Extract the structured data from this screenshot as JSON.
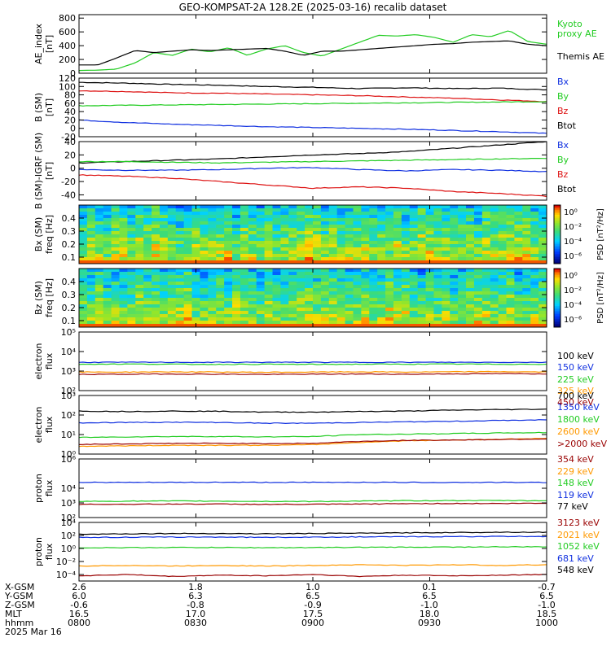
{
  "title": "GEO-KOMPSAT-2A 128.2E (2025-03-16) recalib dataset",
  "chart_data": [
    {
      "id": "ae",
      "type": "line",
      "ylabel": [
        "AE_index",
        "[nT]"
      ],
      "ylim": [
        0,
        850
      ],
      "yticks": [
        "800",
        "600",
        "400",
        "200",
        "0"
      ],
      "tickvals": [
        800,
        600,
        400,
        200,
        0
      ],
      "legend": [
        {
          "text": "Kyoto",
          "color": "#22cc22"
        },
        {
          "text": "proxy AE",
          "color": "#22cc22"
        },
        {
          "text": "Themis AE",
          "color": "#000000"
        }
      ],
      "series": [
        {
          "name": "Kyoto proxy AE",
          "color": "#22cc22",
          "values": [
            40,
            45,
            60,
            150,
            300,
            260,
            350,
            310,
            370,
            260,
            350,
            400,
            300,
            250,
            350,
            450,
            550,
            540,
            560,
            520,
            450,
            560,
            530,
            620,
            460,
            420
          ]
        },
        {
          "name": "Themis AE",
          "color": "#000000",
          "values": [
            120,
            120,
            220,
            330,
            300,
            320,
            340,
            330,
            340,
            350,
            360,
            320,
            260,
            320,
            320,
            340,
            360,
            380,
            400,
            420,
            430,
            450,
            460,
            470,
            420,
            400
          ]
        }
      ]
    },
    {
      "id": "bsm",
      "type": "line",
      "ylabel": [
        "B (SM)",
        "[nT]"
      ],
      "ylim": [
        -20,
        120
      ],
      "yticks": [
        "120",
        "100",
        "80",
        "60",
        "40",
        "20",
        "0",
        "-20"
      ],
      "tickvals": [
        120,
        100,
        80,
        60,
        40,
        20,
        0,
        -20
      ],
      "legend": [
        {
          "text": "Bx",
          "color": "#1030e0"
        },
        {
          "text": "By",
          "color": "#22cc22"
        },
        {
          "text": "Bz",
          "color": "#dd1111"
        },
        {
          "text": "Btot",
          "color": "#000000"
        }
      ],
      "series": [
        {
          "name": "Btot",
          "color": "#000000",
          "values": [
            110,
            108,
            105,
            103,
            100,
            98,
            95,
            97,
            95,
            96,
            92
          ]
        },
        {
          "name": "Bz",
          "color": "#dd1111",
          "values": [
            90,
            88,
            85,
            84,
            82,
            80,
            78,
            75,
            72,
            68,
            64
          ]
        },
        {
          "name": "By",
          "color": "#22cc22",
          "values": [
            54,
            55,
            56,
            57,
            58,
            59,
            60,
            61,
            62,
            63,
            64
          ]
        },
        {
          "name": "Bx",
          "color": "#1030e0",
          "values": [
            20,
            14,
            10,
            7,
            4,
            2,
            0,
            -2,
            -5,
            -8,
            -12
          ]
        }
      ]
    },
    {
      "id": "bdiff",
      "type": "line",
      "ylabel": [
        "B (SM)-IGRF (SM)",
        "[nT]"
      ],
      "ylim": [
        -48,
        40
      ],
      "yticks": [
        "40",
        "20",
        "0",
        "-20",
        "-40"
      ],
      "tickvals": [
        40,
        20,
        0,
        -20,
        -40
      ],
      "legend": [
        {
          "text": "Bx",
          "color": "#1030e0"
        },
        {
          "text": "By",
          "color": "#22cc22"
        },
        {
          "text": "Bz",
          "color": "#dd1111"
        },
        {
          "text": "Btot",
          "color": "#000000"
        }
      ],
      "series": [
        {
          "name": "Btot",
          "color": "#000000",
          "values": [
            8,
            10,
            12,
            14,
            17,
            20,
            22,
            25,
            30,
            35,
            40
          ]
        },
        {
          "name": "By",
          "color": "#22cc22",
          "values": [
            10,
            10,
            9,
            8,
            9,
            10,
            11,
            12,
            13,
            14,
            15
          ]
        },
        {
          "name": "Bx",
          "color": "#1030e0",
          "values": [
            -2,
            -3,
            -3,
            -2,
            0,
            1,
            -2,
            -4,
            -2,
            -3,
            -5
          ]
        },
        {
          "name": "Bz",
          "color": "#dd1111",
          "values": [
            -10,
            -12,
            -15,
            -20,
            -25,
            -30,
            -28,
            -30,
            -35,
            -38,
            -42
          ]
        }
      ]
    },
    {
      "id": "specbx",
      "type": "heatmap",
      "ylabel": [
        "Bx (SM)",
        "freq [Hz]"
      ],
      "ylim": [
        0.05,
        0.5
      ],
      "yticks": [
        "0.4",
        "0.3",
        "0.2",
        "0.1"
      ],
      "tickvals": [
        0.4,
        0.3,
        0.2,
        0.1
      ],
      "colorbar": {
        "label": "PSD [nT²/Hz]",
        "labels": [
          "10⁰",
          "10⁻²",
          "10⁻⁴",
          "10⁻⁶"
        ]
      }
    },
    {
      "id": "specbz",
      "type": "heatmap",
      "ylabel": [
        "Bz (SM)",
        "freq [Hz]"
      ],
      "ylim": [
        0.05,
        0.5
      ],
      "yticks": [
        "0.4",
        "0.3",
        "0.2",
        "0.1"
      ],
      "tickvals": [
        0.4,
        0.3,
        0.2,
        0.1
      ],
      "colorbar": {
        "label": "PSD [nT²/Hz]",
        "labels": [
          "10⁰",
          "10⁻²",
          "10⁻⁴",
          "10⁻⁶"
        ]
      }
    },
    {
      "id": "elo",
      "type": "line",
      "scale": "log",
      "ylabel": [
        "electron",
        "flux"
      ],
      "ylim": [
        2,
        5
      ],
      "yticks": [
        "10⁵",
        "10⁴",
        "10³",
        "10²"
      ],
      "tickvals": [
        5,
        4,
        3,
        2
      ],
      "legend": [
        {
          "text": "100 keV",
          "color": "#000000"
        },
        {
          "text": "150 keV",
          "color": "#1030e0"
        },
        {
          "text": "225 keV",
          "color": "#22cc22"
        },
        {
          "text": "325 keV",
          "color": "#ff9900"
        },
        {
          "text": "450 keV",
          "color": "#990000"
        }
      ],
      "series": [
        {
          "name": "150 keV",
          "color": "#1030e0",
          "values": [
            3.45,
            3.45,
            3.45,
            3.45,
            3.45,
            3.45,
            3.45,
            3.45,
            3.45,
            3.45,
            3.45
          ]
        },
        {
          "name": "225 keV",
          "color": "#22cc22",
          "values": [
            3.35,
            3.36,
            3.35,
            3.34,
            3.35,
            3.34,
            3.35,
            3.35,
            3.36,
            3.35,
            3.35
          ]
        },
        {
          "name": "325 keV",
          "color": "#ff9900",
          "values": [
            2.95,
            2.95,
            2.96,
            2.95,
            2.94,
            2.95,
            2.96,
            2.95,
            2.96,
            2.97,
            2.95
          ]
        },
        {
          "name": "450 keV",
          "color": "#990000",
          "values": [
            2.83,
            2.84,
            2.85,
            2.84,
            2.83,
            2.84,
            2.85,
            2.84,
            2.86,
            2.87,
            2.86
          ]
        }
      ]
    },
    {
      "id": "ehi",
      "type": "line",
      "scale": "log",
      "ylabel": [
        "electron",
        "flux"
      ],
      "ylim": [
        0,
        3
      ],
      "yticks": [
        "10³",
        "10²",
        "10¹",
        "10⁰"
      ],
      "tickvals": [
        3,
        2,
        1,
        0
      ],
      "legend": [
        {
          "text": "700 keV",
          "color": "#000000"
        },
        {
          "text": "1350 keV",
          "color": "#1030e0"
        },
        {
          "text": "1800 keV",
          "color": "#22cc22"
        },
        {
          "text": "2600 keV",
          "color": "#ff9900"
        },
        {
          "text": ">2000 keV",
          "color": "#990000"
        }
      ],
      "series": [
        {
          "name": "700 keV",
          "color": "#000000",
          "values": [
            2.2,
            2.18,
            2.2,
            2.19,
            2.15,
            2.15,
            2.18,
            2.2,
            2.25,
            2.28,
            2.3
          ]
        },
        {
          "name": "1350 keV",
          "color": "#1030e0",
          "values": [
            1.6,
            1.62,
            1.63,
            1.62,
            1.58,
            1.58,
            1.62,
            1.65,
            1.68,
            1.72,
            1.75
          ]
        },
        {
          "name": "1800 keV",
          "color": "#22cc22",
          "values": [
            0.85,
            0.88,
            0.9,
            0.9,
            0.88,
            0.9,
            1.0,
            1.02,
            1.05,
            1.08,
            1.1
          ]
        },
        {
          "name": "2600 keV",
          "color": "#ff9900",
          "values": [
            0.4,
            0.42,
            0.45,
            0.45,
            0.45,
            0.48,
            0.6,
            0.68,
            0.72,
            0.76,
            0.8
          ]
        },
        {
          "name": ">2000 keV",
          "color": "#990000",
          "values": [
            0.5,
            0.52,
            0.55,
            0.55,
            0.54,
            0.55,
            0.65,
            0.7,
            0.72,
            0.75,
            0.78
          ]
        }
      ]
    },
    {
      "id": "plo",
      "type": "line",
      "scale": "log",
      "ylabel": [
        "proton",
        "flux"
      ],
      "ylim": [
        2,
        6
      ],
      "yticks": [
        "10⁶",
        "10⁴",
        "10³",
        "10²"
      ],
      "tickvals": [
        6,
        4,
        3,
        2
      ],
      "legend": [
        {
          "text": "354 keV",
          "color": "#990000"
        },
        {
          "text": "229 keV",
          "color": "#ff9900"
        },
        {
          "text": "148 keV",
          "color": "#22cc22"
        },
        {
          "text": "119 keV",
          "color": "#1030e0"
        },
        {
          "text": "77 keV",
          "color": "#000000"
        }
      ],
      "series": [
        {
          "name": "119 keV",
          "color": "#1030e0",
          "values": [
            4.4,
            4.4,
            4.4,
            4.41,
            4.4,
            4.4,
            4.41,
            4.4,
            4.4,
            4.4,
            4.4
          ]
        },
        {
          "name": "148 keV",
          "color": "#22cc22",
          "values": [
            3.1,
            3.12,
            3.13,
            3.12,
            3.1,
            3.1,
            3.12,
            3.15,
            3.16,
            3.16,
            3.15
          ]
        },
        {
          "name": "354 keV",
          "color": "#990000",
          "values": [
            2.9,
            2.91,
            2.92,
            2.92,
            2.9,
            2.9,
            2.92,
            2.95,
            2.96,
            2.96,
            2.98
          ]
        }
      ]
    },
    {
      "id": "phi",
      "type": "line",
      "scale": "log",
      "ylabel": [
        "proton",
        "flux"
      ],
      "ylim": [
        -5,
        4
      ],
      "yticks": [
        "10⁴",
        "10²",
        "10⁰",
        "10⁻²",
        "10⁻⁴"
      ],
      "tickvals": [
        4,
        2,
        0,
        -2,
        -4
      ],
      "legend": [
        {
          "text": "3123 keV",
          "color": "#990000"
        },
        {
          "text": "2021 keV",
          "color": "#ff9900"
        },
        {
          "text": "1052 keV",
          "color": "#22cc22"
        },
        {
          "text": "681 keV",
          "color": "#1030e0"
        },
        {
          "text": "548 keV",
          "color": "#000000"
        }
      ],
      "series": [
        {
          "name": "548 keV",
          "color": "#000000",
          "values": [
            2.2,
            2.25,
            2.3,
            2.3,
            2.25,
            2.3,
            2.35,
            2.4,
            2.45,
            2.5,
            2.5
          ]
        },
        {
          "name": "681 keV",
          "color": "#1030e0",
          "values": [
            1.7,
            1.72,
            1.75,
            1.75,
            1.72,
            1.73,
            1.78,
            1.8,
            1.82,
            1.85,
            1.85
          ]
        },
        {
          "name": "1052 keV",
          "color": "#22cc22",
          "values": [
            0.1,
            0.12,
            0.15,
            0.15,
            0.12,
            0.13,
            0.18,
            0.2,
            0.22,
            0.25,
            0.25
          ]
        },
        {
          "name": "2021 keV",
          "color": "#ff9900",
          "values": [
            -2.7,
            -2.6,
            -2.7,
            -2.6,
            -2.7,
            -2.6,
            -2.5,
            -2.6,
            -2.5,
            -2.6,
            -2.5
          ]
        },
        {
          "name": "3123 keV",
          "color": "#990000",
          "values": [
            -4.2,
            -4.0,
            -4.3,
            -4.1,
            -4.2,
            -4.0,
            -4.3,
            -4.1,
            -4.2,
            -4.1,
            -4.0
          ]
        }
      ]
    }
  ],
  "xaxis": {
    "rows": [
      {
        "label": "X-GSM",
        "values": [
          "2.6",
          "1.8",
          "1.0",
          "0.1",
          "-0.7"
        ]
      },
      {
        "label": "Y-GSM",
        "values": [
          "6.0",
          "6.3",
          "6.5",
          "6.5",
          "6.5"
        ]
      },
      {
        "label": "Z-GSM",
        "values": [
          "-0.6",
          "-0.8",
          "-0.9",
          "-1.0",
          "-1.0"
        ]
      },
      {
        "label": "MLT",
        "values": [
          "16.5",
          "17.0",
          "17.5",
          "18.0",
          "18.5"
        ]
      },
      {
        "label": "hhmm",
        "values": [
          "0800",
          "0830",
          "0900",
          "0930",
          "1000"
        ]
      }
    ],
    "date": "2025 Mar 16"
  }
}
